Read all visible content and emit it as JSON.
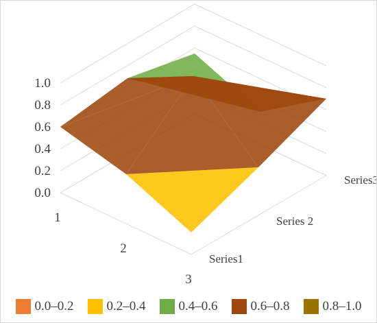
{
  "chart_data": {
    "type": "surface",
    "x": [
      "1",
      "2",
      "3"
    ],
    "series": [
      {
        "name": "Series1",
        "values": [
          0.6,
          0.45,
          0.2
        ]
      },
      {
        "name": "Series 2",
        "values": [
          0.7,
          1.0,
          0.45
        ]
      },
      {
        "name": "Series3",
        "values": [
          0.55,
          0.3,
          0.7
        ]
      }
    ],
    "z_ticks": [
      "0.0",
      "0.2",
      "0.4",
      "0.6",
      "0.8",
      "1.0"
    ],
    "zlim": [
      0,
      1
    ],
    "grid": true,
    "legend_position": "bottom",
    "bands": [
      {
        "label": "0.0–0.2",
        "color": "#ED7D31"
      },
      {
        "label": "0.2–0.4",
        "color": "#FFC000"
      },
      {
        "label": "0.4–0.6",
        "color": "#70AD47"
      },
      {
        "label": "0.6–0.8",
        "color": "#9E480E"
      },
      {
        "label": "0.8–1.0",
        "color": "#997300"
      }
    ]
  }
}
